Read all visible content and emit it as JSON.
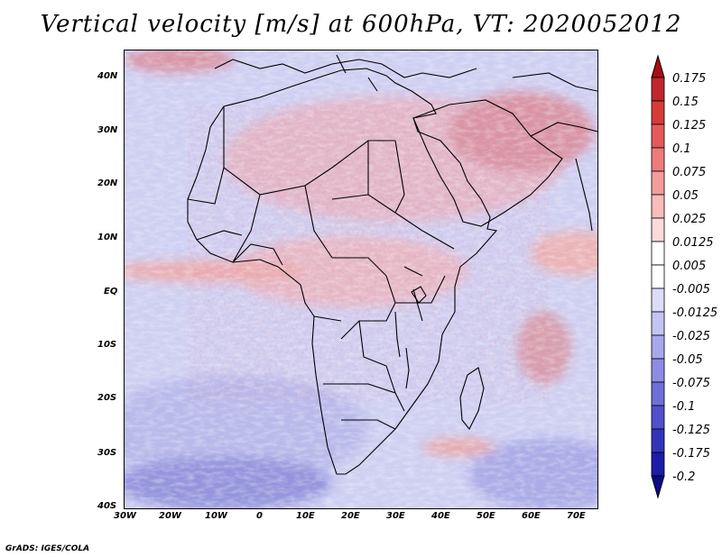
{
  "title": "Vertical velocity [m/s] at 600hPa, VT: 2020052012",
  "credit": "GrADS: IGES/COLA",
  "axes": {
    "lon_labels": [
      "30W",
      "20W",
      "10W",
      "0",
      "10E",
      "20E",
      "30E",
      "40E",
      "50E",
      "60E",
      "70E"
    ],
    "lat_labels": [
      "40N",
      "30N",
      "20N",
      "10N",
      "EQ",
      "10S",
      "20S",
      "30S",
      "40S"
    ]
  },
  "colorbar": {
    "labels": [
      "0.175",
      "0.15",
      "0.125",
      "0.1",
      "0.075",
      "0.05",
      "0.025",
      "0.0125",
      "0.005",
      "-0.005",
      "-0.0125",
      "-0.025",
      "-0.05",
      "-0.075",
      "-0.1",
      "-0.125",
      "-0.175",
      "-0.2"
    ],
    "colors": [
      "#a50f15",
      "#c0262b",
      "#d63a3a",
      "#e65a5a",
      "#ee7b7b",
      "#f49c9c",
      "#f8bcbc",
      "#fbdada",
      "#ffffff",
      "#ffffff",
      "#dcdcf8",
      "#c4c4f2",
      "#a8a8ec",
      "#8c8ce4",
      "#6f6fda",
      "#5050cc",
      "#3434bb",
      "#1c1ca8",
      "#0a0a8c"
    ]
  }
}
